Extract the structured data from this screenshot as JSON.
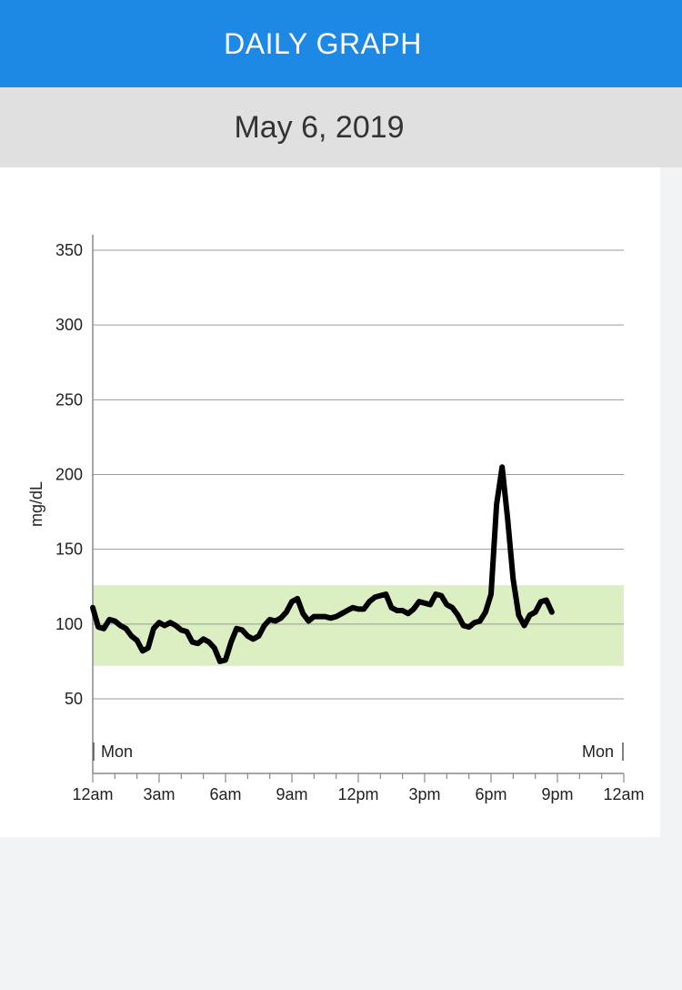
{
  "header": {
    "title": "DAILY GRAPH"
  },
  "date_bar": {
    "date": "May 6, 2019"
  },
  "chart_data": {
    "type": "line",
    "title": "",
    "xlabel": "",
    "ylabel": "mg/dL",
    "x_unit": "hours since 12am",
    "xlim": [
      0,
      24
    ],
    "ylim": [
      10,
      360
    ],
    "x_ticks": [
      {
        "value": 0,
        "label": "12am"
      },
      {
        "value": 3,
        "label": "3am"
      },
      {
        "value": 6,
        "label": "6am"
      },
      {
        "value": 9,
        "label": "9am"
      },
      {
        "value": 12,
        "label": "12pm"
      },
      {
        "value": 15,
        "label": "3pm"
      },
      {
        "value": 18,
        "label": "6pm"
      },
      {
        "value": 21,
        "label": "9pm"
      },
      {
        "value": 24,
        "label": "12am"
      }
    ],
    "y_ticks": [
      {
        "value": 50,
        "label": "50"
      },
      {
        "value": 100,
        "label": "100"
      },
      {
        "value": 150,
        "label": "150"
      },
      {
        "value": 200,
        "label": "200"
      },
      {
        "value": 250,
        "label": "250"
      },
      {
        "value": 300,
        "label": "300"
      },
      {
        "value": 350,
        "label": "350"
      }
    ],
    "target_range": {
      "low": 72,
      "high": 126,
      "color": "#dcefc2"
    },
    "day_labels": [
      {
        "label": "Mon",
        "position": "start"
      },
      {
        "label": "Mon",
        "position": "end"
      }
    ],
    "grid": true,
    "series": [
      {
        "color": "#000000",
        "points": [
          [
            0.0,
            111
          ],
          [
            0.25,
            98
          ],
          [
            0.5,
            97
          ],
          [
            0.75,
            103
          ],
          [
            1.0,
            102
          ],
          [
            1.25,
            99
          ],
          [
            1.5,
            97
          ],
          [
            1.75,
            92
          ],
          [
            2.0,
            89
          ],
          [
            2.25,
            82
          ],
          [
            2.5,
            84
          ],
          [
            2.75,
            97
          ],
          [
            3.0,
            101
          ],
          [
            3.25,
            99
          ],
          [
            3.5,
            101
          ],
          [
            3.75,
            99
          ],
          [
            4.0,
            96
          ],
          [
            4.25,
            95
          ],
          [
            4.5,
            88
          ],
          [
            4.75,
            87
          ],
          [
            5.0,
            90
          ],
          [
            5.25,
            88
          ],
          [
            5.5,
            84
          ],
          [
            5.75,
            75
          ],
          [
            6.0,
            76
          ],
          [
            6.25,
            88
          ],
          [
            6.5,
            97
          ],
          [
            6.75,
            96
          ],
          [
            7.0,
            92
          ],
          [
            7.25,
            90
          ],
          [
            7.5,
            92
          ],
          [
            7.75,
            99
          ],
          [
            8.0,
            103
          ],
          [
            8.25,
            102
          ],
          [
            8.5,
            104
          ],
          [
            8.75,
            108
          ],
          [
            9.0,
            115
          ],
          [
            9.25,
            117
          ],
          [
            9.5,
            107
          ],
          [
            9.75,
            102
          ],
          [
            10.0,
            105
          ],
          [
            10.25,
            105
          ],
          [
            10.5,
            105
          ],
          [
            10.75,
            104
          ],
          [
            11.0,
            105
          ],
          [
            11.25,
            107
          ],
          [
            11.5,
            109
          ],
          [
            11.75,
            111
          ],
          [
            12.0,
            110
          ],
          [
            12.25,
            110
          ],
          [
            12.5,
            115
          ],
          [
            12.75,
            118
          ],
          [
            13.0,
            119
          ],
          [
            13.25,
            120
          ],
          [
            13.5,
            111
          ],
          [
            13.75,
            109
          ],
          [
            14.0,
            109
          ],
          [
            14.25,
            107
          ],
          [
            14.5,
            110
          ],
          [
            14.75,
            115
          ],
          [
            15.0,
            114
          ],
          [
            15.25,
            113
          ],
          [
            15.5,
            120
          ],
          [
            15.75,
            119
          ],
          [
            16.0,
            113
          ],
          [
            16.25,
            111
          ],
          [
            16.5,
            106
          ],
          [
            16.75,
            99
          ],
          [
            17.0,
            98
          ],
          [
            17.25,
            101
          ],
          [
            17.5,
            102
          ],
          [
            17.75,
            108
          ],
          [
            18.0,
            120
          ],
          [
            18.25,
            180
          ],
          [
            18.5,
            205
          ],
          [
            18.75,
            170
          ],
          [
            19.0,
            130
          ],
          [
            19.25,
            106
          ],
          [
            19.5,
            99
          ],
          [
            19.75,
            106
          ],
          [
            20.0,
            108
          ],
          [
            20.25,
            115
          ],
          [
            20.5,
            116
          ],
          [
            20.75,
            108
          ]
        ]
      }
    ]
  }
}
